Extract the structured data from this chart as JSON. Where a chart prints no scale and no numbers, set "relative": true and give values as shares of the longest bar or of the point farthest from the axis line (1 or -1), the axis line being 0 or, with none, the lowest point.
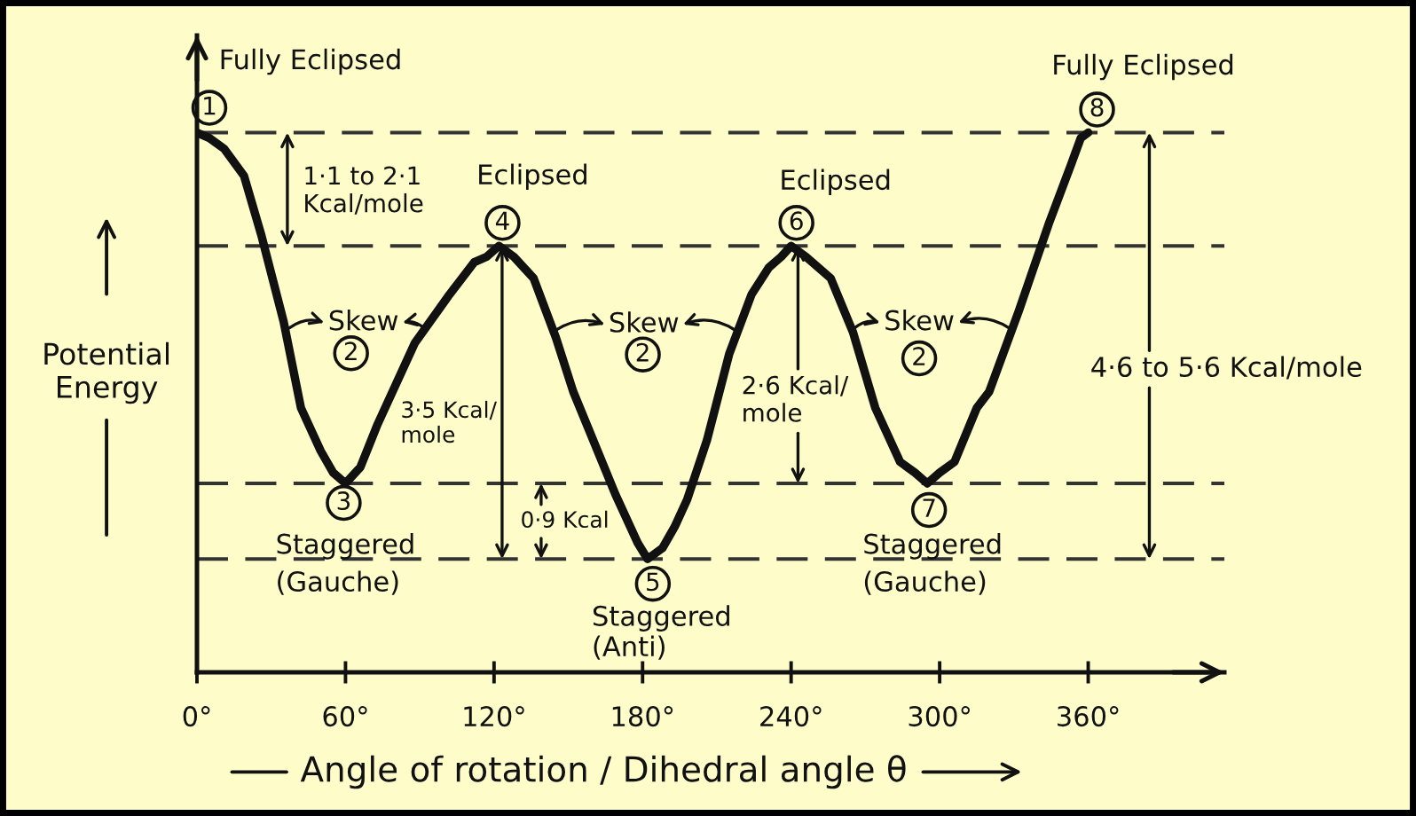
{
  "chart_data": {
    "type": "line",
    "relative": true,
    "xlabel": "Angle of rotation / Dihedral angle θ",
    "ylabel": "Potential\nEnergy",
    "x": [
      0,
      5,
      11,
      19,
      26,
      35,
      42,
      50,
      55,
      60,
      66,
      73,
      88,
      102,
      112,
      117,
      122,
      128,
      136,
      145,
      152,
      169,
      178,
      182,
      188,
      193,
      198,
      206,
      215,
      224,
      231,
      236,
      240,
      246,
      256,
      265,
      274,
      284,
      290,
      295,
      300,
      306,
      315,
      320,
      332,
      344,
      353,
      357,
      360
    ],
    "series": [
      {
        "color": "#111111",
        "values": [
          1.0,
          0.99,
          0.97,
          0.92,
          0.81,
          0.65,
          0.49,
          0.41,
          0.37,
          0.35,
          0.38,
          0.46,
          0.61,
          0.7,
          0.76,
          0.77,
          0.79,
          0.77,
          0.73,
          0.62,
          0.52,
          0.33,
          0.24,
          0.21,
          0.23,
          0.27,
          0.32,
          0.43,
          0.59,
          0.7,
          0.75,
          0.77,
          0.79,
          0.77,
          0.73,
          0.63,
          0.49,
          0.39,
          0.37,
          0.35,
          0.37,
          0.39,
          0.49,
          0.52,
          0.67,
          0.83,
          0.94,
          0.99,
          1.0
        ]
      }
    ],
    "xlim": [
      0,
      415
    ],
    "xticks": [
      {
        "value": 0,
        "label": "0°"
      },
      {
        "value": 60,
        "label": "60°"
      },
      {
        "value": 120,
        "label": "120°"
      },
      {
        "value": 180,
        "label": "180°"
      },
      {
        "value": 240,
        "label": "240°"
      },
      {
        "value": 300,
        "label": "300°"
      },
      {
        "value": 360,
        "label": "360°"
      }
    ],
    "ref_lines": [
      {
        "axis": "y",
        "value": 1.0,
        "line_style": "dashed",
        "color": "#333333"
      },
      {
        "axis": "y",
        "value": 0.79,
        "line_style": "dashed",
        "color": "#333333"
      },
      {
        "axis": "y",
        "value": 0.35,
        "line_style": "dashed",
        "color": "#333333"
      },
      {
        "axis": "y",
        "value": 0.21,
        "line_style": "dashed",
        "color": "#333333"
      }
    ],
    "annotations": [
      {
        "text": "Fully Eclipsed",
        "x": 0,
        "y": 1.0
      },
      {
        "text": "Eclipsed",
        "x": 122,
        "y": 0.79
      },
      {
        "text": "Eclipsed",
        "x": 240,
        "y": 0.79
      },
      {
        "text": "Fully Eclipsed",
        "x": 360,
        "y": 1.0
      },
      {
        "text": "1",
        "x": 0,
        "y": 1.0
      },
      {
        "text": "3",
        "x": 60,
        "y": 0.35
      },
      {
        "text": "4",
        "x": 122,
        "y": 0.79
      },
      {
        "text": "5",
        "x": 182,
        "y": 0.21
      },
      {
        "text": "6",
        "x": 240,
        "y": 0.79
      },
      {
        "text": "7",
        "x": 295,
        "y": 0.35
      },
      {
        "text": "8",
        "x": 360,
        "y": 1.0
      },
      {
        "text": "Staggered\n(Gauche)",
        "x": 60,
        "y": 0.35
      },
      {
        "text": "Staggered\n(Anti)",
        "x": 182,
        "y": 0.21
      },
      {
        "text": "Staggered\n(Gauche)",
        "x": 295,
        "y": 0.35
      },
      "Skew",
      "2",
      "Skew",
      "2",
      "Skew",
      "2",
      "1·1 to 2·1\nKcal/mole",
      "3·5 Kcal/\nmole",
      "0·9 Kcal",
      "2·6 Kcal/\nmole",
      "4·6 to 5·6 Kcal/mole"
    ]
  }
}
